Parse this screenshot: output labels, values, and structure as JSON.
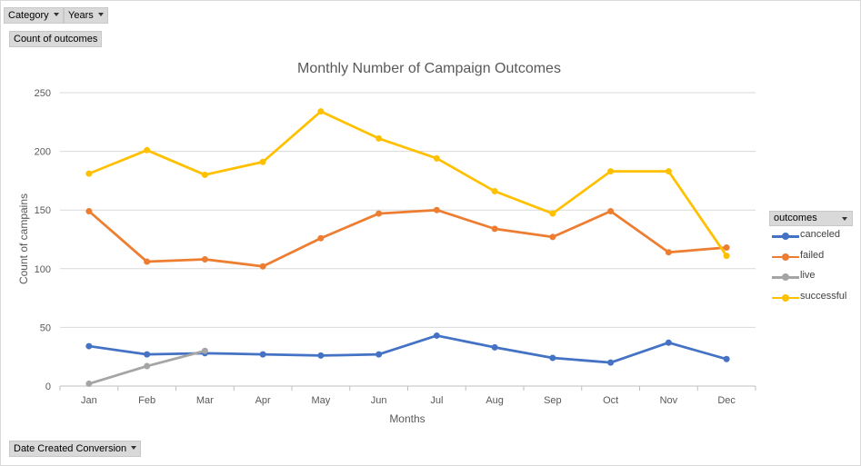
{
  "filters": {
    "category_label": "Category",
    "years_label": "Years",
    "values_label": "Count of outcomes",
    "axis_field_label": "Date Created Conversion"
  },
  "legend": {
    "title": "outcomes"
  },
  "chart_data": {
    "type": "line",
    "title": "Monthly Number of Campaign Outcomes",
    "xlabel": "Months",
    "ylabel": "Count of campains",
    "categories": [
      "Jan",
      "Feb",
      "Mar",
      "Apr",
      "May",
      "Jun",
      "Jul",
      "Aug",
      "Sep",
      "Oct",
      "Nov",
      "Dec"
    ],
    "ylim": [
      0,
      250
    ],
    "yticks": [
      0,
      50,
      100,
      150,
      200,
      250
    ],
    "grid": true,
    "legend_position": "right",
    "series": [
      {
        "name": "canceled",
        "color": "#4472c4",
        "values": [
          34,
          27,
          28,
          27,
          26,
          27,
          43,
          33,
          24,
          20,
          37,
          23
        ]
      },
      {
        "name": "failed",
        "color": "#ed7d31",
        "values": [
          149,
          106,
          108,
          102,
          126,
          147,
          150,
          134,
          127,
          149,
          114,
          118
        ]
      },
      {
        "name": "live",
        "color": "#a5a5a5",
        "values": [
          2,
          17,
          30,
          null,
          null,
          null,
          null,
          null,
          null,
          null,
          null,
          null
        ]
      },
      {
        "name": "successful",
        "color": "#ffc000",
        "values": [
          181,
          201,
          180,
          191,
          234,
          211,
          194,
          166,
          147,
          183,
          183,
          111
        ]
      }
    ]
  }
}
